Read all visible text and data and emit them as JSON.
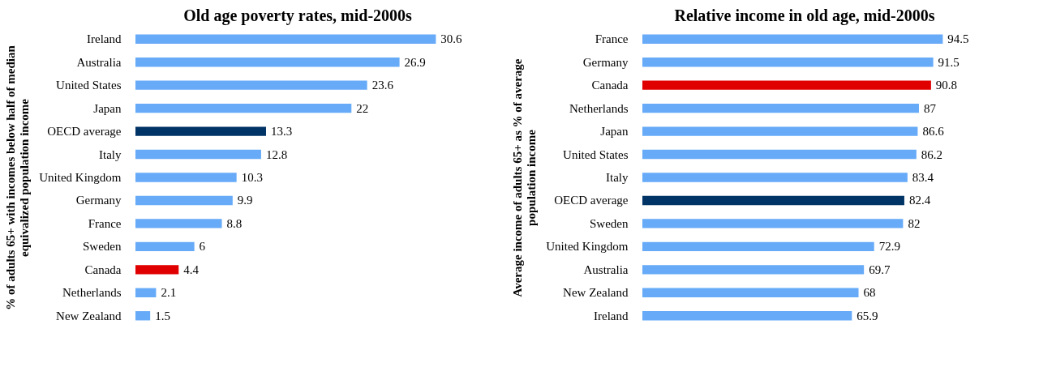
{
  "chart_data": [
    {
      "type": "bar",
      "orientation": "horizontal",
      "title": "Old age poverty rates, mid-2000s",
      "ylabel": "% of adults 65+ with incomes below half of median\nequivalized  population income",
      "data_labels": true,
      "grid": false,
      "categories": [
        "Ireland",
        "Australia",
        "United States",
        "Japan",
        "OECD average",
        "Italy",
        "United Kingdom",
        "Germany",
        "France",
        "Sweden",
        "Canada",
        "Netherlands",
        "New Zealand"
      ],
      "values": [
        30.6,
        26.9,
        23.6,
        22,
        13.3,
        12.8,
        10.3,
        9.9,
        8.8,
        6,
        4.4,
        2.1,
        1.5
      ],
      "colors": [
        "#66aaf8",
        "#66aaf8",
        "#66aaf8",
        "#66aaf8",
        "#003366",
        "#66aaf8",
        "#66aaf8",
        "#66aaf8",
        "#66aaf8",
        "#66aaf8",
        "#e00000",
        "#66aaf8",
        "#66aaf8"
      ]
    },
    {
      "type": "bar",
      "orientation": "horizontal",
      "title": "Relative income in old age, mid-2000s",
      "ylabel": "Average income of adults 65+ as % of average\npopulation income",
      "data_labels": true,
      "grid": false,
      "categories": [
        "France",
        "Germany",
        "Canada",
        "Netherlands",
        "Japan",
        "United States",
        "Italy",
        "OECD average",
        "Sweden",
        "United Kingdom",
        "Australia",
        "New Zealand",
        "Ireland"
      ],
      "values": [
        94.5,
        91.5,
        90.8,
        87,
        86.6,
        86.2,
        83.4,
        82.4,
        82,
        72.9,
        69.7,
        68,
        65.9
      ],
      "colors": [
        "#66aaf8",
        "#66aaf8",
        "#e00000",
        "#66aaf8",
        "#66aaf8",
        "#66aaf8",
        "#66aaf8",
        "#003366",
        "#66aaf8",
        "#66aaf8",
        "#66aaf8",
        "#66aaf8",
        "#66aaf8"
      ]
    }
  ]
}
